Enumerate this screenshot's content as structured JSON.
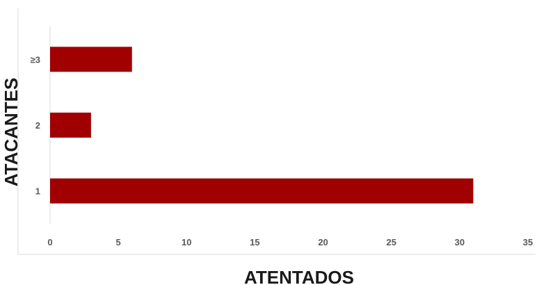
{
  "chart_data": {
    "type": "bar",
    "orientation": "horizontal",
    "categories": [
      "≥3",
      "2",
      "1"
    ],
    "values": [
      6,
      3,
      31
    ],
    "title": "",
    "xlabel": "ATENTADOS",
    "ylabel": "ATACANTES",
    "xlim": [
      0,
      35
    ],
    "xticks": [
      "0",
      "5",
      "10",
      "15",
      "20",
      "25",
      "30",
      "35"
    ],
    "grid": false,
    "legend": "none",
    "bar_color": "#a00000"
  }
}
